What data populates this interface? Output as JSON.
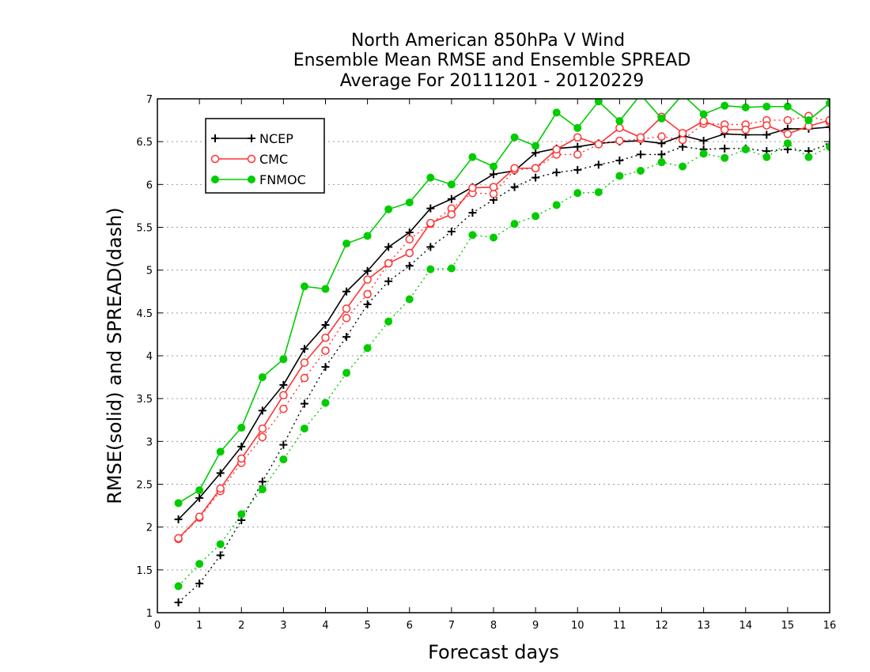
{
  "chart_data": {
    "type": "line",
    "title_lines": [
      "North American 850hPa V Wind",
      "Ensemble Mean RMSE and Ensemble SPREAD",
      "Average For 20111201 - 20120229"
    ],
    "xlabel": "Forecast days",
    "ylabel": "RMSE(solid) and SPREAD(dash)",
    "xlim": [
      0,
      16
    ],
    "ylim": [
      1,
      7
    ],
    "x_ticks": [
      "0",
      "1",
      "2",
      "3",
      "4",
      "5",
      "6",
      "7",
      "8",
      "9",
      "10",
      "11",
      "12",
      "13",
      "14",
      "15",
      "16"
    ],
    "y_ticks": [
      "1",
      "1.5",
      "2",
      "2.5",
      "3",
      "3.5",
      "4",
      "4.5",
      "5",
      "5.5",
      "6",
      "6.5",
      "7"
    ],
    "grid": "horizontal dotted",
    "legend_position": "top-left",
    "x": [
      0.5,
      1,
      1.5,
      2,
      2.5,
      3,
      3.5,
      4,
      4.5,
      5,
      5.5,
      6,
      6.5,
      7,
      7.5,
      8,
      8.5,
      9,
      9.5,
      10,
      10.5,
      11,
      11.5,
      12,
      12.5,
      13,
      13.5,
      14,
      14.5,
      15,
      15.5,
      16
    ],
    "series": [
      {
        "name": "NCEP",
        "color": "#000000",
        "marker": "plus",
        "rmse": [
          2.09,
          2.34,
          2.63,
          2.94,
          3.36,
          3.66,
          4.08,
          4.36,
          4.75,
          4.99,
          5.27,
          5.44,
          5.72,
          5.83,
          5.97,
          6.12,
          6.16,
          6.37,
          6.42,
          6.44,
          6.48,
          6.5,
          6.51,
          6.48,
          6.57,
          6.51,
          6.59,
          6.58,
          6.58,
          6.65,
          6.65,
          6.67
        ],
        "spread": [
          1.12,
          1.34,
          1.67,
          2.08,
          2.53,
          2.96,
          3.44,
          3.87,
          4.22,
          4.6,
          4.87,
          5.05,
          5.27,
          5.45,
          5.67,
          5.82,
          5.97,
          6.08,
          6.14,
          6.17,
          6.23,
          6.28,
          6.35,
          6.35,
          6.44,
          6.41,
          6.42,
          6.42,
          6.39,
          6.41,
          6.39,
          6.47
        ]
      },
      {
        "name": "CMC",
        "color": "#ff3333",
        "marker": "open-circle",
        "rmse": [
          1.87,
          2.12,
          2.45,
          2.8,
          3.15,
          3.54,
          3.92,
          4.21,
          4.55,
          4.89,
          5.08,
          5.2,
          5.55,
          5.65,
          5.96,
          5.97,
          6.19,
          6.19,
          6.41,
          6.55,
          6.47,
          6.66,
          6.55,
          6.79,
          6.6,
          6.74,
          6.64,
          6.64,
          6.69,
          6.59,
          6.68,
          6.75
        ],
        "spread": [
          1.86,
          2.11,
          2.42,
          2.75,
          3.05,
          3.38,
          3.74,
          4.06,
          4.44,
          4.72,
          5.08,
          5.36,
          5.54,
          5.72,
          5.9,
          5.89,
          6.17,
          6.19,
          6.35,
          6.35,
          6.47,
          6.51,
          6.53,
          6.56,
          6.52,
          6.71,
          6.7,
          6.7,
          6.75,
          6.75,
          6.8,
          6.73
        ]
      },
      {
        "name": "FNMOC",
        "color": "#00cc00",
        "marker": "filled-circle",
        "rmse": [
          2.28,
          2.43,
          2.88,
          3.16,
          3.75,
          3.96,
          4.81,
          4.78,
          5.31,
          5.4,
          5.71,
          5.79,
          6.08,
          6.0,
          6.32,
          6.21,
          6.55,
          6.45,
          6.84,
          6.66,
          6.97,
          6.74,
          7.05,
          6.77,
          7.05,
          6.82,
          6.92,
          6.9,
          6.91,
          6.91,
          6.75,
          6.95
        ],
        "spread": [
          1.31,
          1.57,
          1.8,
          2.15,
          2.44,
          2.79,
          3.15,
          3.45,
          3.8,
          4.09,
          4.4,
          4.66,
          5.01,
          5.02,
          5.41,
          5.38,
          5.54,
          5.63,
          5.76,
          5.9,
          5.91,
          6.1,
          6.16,
          6.26,
          6.21,
          6.36,
          6.31,
          6.41,
          6.32,
          6.48,
          6.32,
          6.44
        ]
      }
    ]
  }
}
